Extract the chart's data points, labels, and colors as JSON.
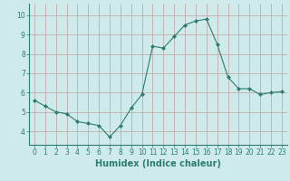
{
  "xlabel": "Humidex (Indice chaleur)",
  "ylabel": "",
  "x": [
    0,
    1,
    2,
    3,
    4,
    5,
    6,
    7,
    8,
    9,
    10,
    11,
    12,
    13,
    14,
    15,
    16,
    17,
    18,
    19,
    20,
    21,
    22,
    23
  ],
  "y": [
    5.6,
    5.3,
    5.0,
    4.9,
    4.5,
    4.4,
    4.3,
    3.7,
    4.3,
    5.2,
    5.9,
    8.4,
    8.3,
    8.9,
    9.5,
    9.7,
    9.8,
    8.5,
    6.8,
    6.2,
    6.2,
    5.9,
    6.0,
    6.05
  ],
  "line_color": "#2d7d6e",
  "marker": "D",
  "marker_size": 2.0,
  "bg_color": "#ceeaea",
  "grid_color": "#c0a0a0",
  "xlim": [
    -0.5,
    23.5
  ],
  "ylim": [
    3.3,
    10.6
  ],
  "yticks": [
    4,
    5,
    6,
    7,
    8,
    9,
    10
  ],
  "xticks": [
    0,
    1,
    2,
    3,
    4,
    5,
    6,
    7,
    8,
    9,
    10,
    11,
    12,
    13,
    14,
    15,
    16,
    17,
    18,
    19,
    20,
    21,
    22,
    23
  ],
  "xtick_labels": [
    "0",
    "1",
    "2",
    "3",
    "4",
    "5",
    "6",
    "7",
    "8",
    "9",
    "10",
    "11",
    "12",
    "13",
    "14",
    "15",
    "16",
    "17",
    "18",
    "19",
    "20",
    "21",
    "22",
    "23"
  ],
  "tick_fontsize": 5.5,
  "xlabel_fontsize": 7.0,
  "linewidth": 0.8
}
